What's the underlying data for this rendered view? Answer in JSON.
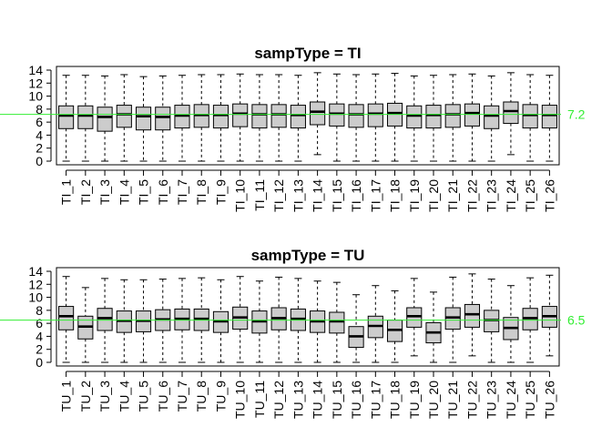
{
  "chart_data": [
    {
      "type": "boxplot",
      "title": "sampType = TI",
      "xlabel": "",
      "ylabel": "",
      "ylim": [
        0,
        14
      ],
      "yticks": [
        0,
        2,
        4,
        6,
        8,
        10,
        12,
        14
      ],
      "categories": [
        "TI_1",
        "TI_2",
        "TI_3",
        "TI_4",
        "TI_5",
        "TI_6",
        "TI_7",
        "TI_8",
        "TI_9",
        "TI_10",
        "TI_11",
        "TI_12",
        "TI_13",
        "TI_14",
        "TI_15",
        "TI_16",
        "TI_17",
        "TI_18",
        "TI_19",
        "TI_20",
        "TI_21",
        "TI_22",
        "TI_23",
        "TI_24",
        "TI_25",
        "TI_26"
      ],
      "boxes": [
        {
          "min": 0,
          "q1": 5.0,
          "median": 7.0,
          "q3": 8.5,
          "max": 13.2
        },
        {
          "min": 0,
          "q1": 5.0,
          "median": 7.0,
          "q3": 8.5,
          "max": 13.2
        },
        {
          "min": 0,
          "q1": 4.6,
          "median": 6.8,
          "q3": 8.3,
          "max": 13.1
        },
        {
          "min": 0,
          "q1": 5.2,
          "median": 7.2,
          "q3": 8.6,
          "max": 13.3
        },
        {
          "min": 0,
          "q1": 4.8,
          "median": 6.9,
          "q3": 8.3,
          "max": 13.0
        },
        {
          "min": 0,
          "q1": 4.8,
          "median": 6.8,
          "q3": 8.3,
          "max": 13.1
        },
        {
          "min": 0,
          "q1": 5.1,
          "median": 7.0,
          "q3": 8.6,
          "max": 13.2
        },
        {
          "min": 0,
          "q1": 5.2,
          "median": 7.1,
          "q3": 8.7,
          "max": 13.3
        },
        {
          "min": 0,
          "q1": 5.1,
          "median": 7.1,
          "q3": 8.6,
          "max": 13.3
        },
        {
          "min": 0,
          "q1": 5.3,
          "median": 7.3,
          "q3": 8.8,
          "max": 13.4
        },
        {
          "min": 0,
          "q1": 5.1,
          "median": 7.2,
          "q3": 8.7,
          "max": 13.3
        },
        {
          "min": 0,
          "q1": 5.2,
          "median": 7.2,
          "q3": 8.7,
          "max": 13.3
        },
        {
          "min": 0,
          "q1": 5.1,
          "median": 7.1,
          "q3": 8.6,
          "max": 13.2
        },
        {
          "min": 1.0,
          "q1": 5.6,
          "median": 7.6,
          "q3": 9.1,
          "max": 13.6
        },
        {
          "min": 0,
          "q1": 5.4,
          "median": 7.3,
          "q3": 8.8,
          "max": 13.4
        },
        {
          "min": 0,
          "q1": 5.2,
          "median": 7.2,
          "q3": 8.7,
          "max": 13.3
        },
        {
          "min": 0,
          "q1": 5.3,
          "median": 7.3,
          "q3": 8.8,
          "max": 13.4
        },
        {
          "min": 0,
          "q1": 5.4,
          "median": 7.4,
          "q3": 8.9,
          "max": 13.5
        },
        {
          "min": 0,
          "q1": 5.1,
          "median": 7.0,
          "q3": 8.5,
          "max": 13.1
        },
        {
          "min": 0,
          "q1": 5.1,
          "median": 7.1,
          "q3": 8.6,
          "max": 13.2
        },
        {
          "min": 0,
          "q1": 5.2,
          "median": 7.2,
          "q3": 8.7,
          "max": 13.3
        },
        {
          "min": 0,
          "q1": 5.4,
          "median": 7.4,
          "q3": 8.8,
          "max": 13.4
        },
        {
          "min": 0,
          "q1": 5.0,
          "median": 7.0,
          "q3": 8.5,
          "max": 13.1
        },
        {
          "min": 1.0,
          "q1": 5.8,
          "median": 7.7,
          "q3": 9.1,
          "max": 13.6
        },
        {
          "min": 0,
          "q1": 5.1,
          "median": 7.1,
          "q3": 8.7,
          "max": 13.3
        },
        {
          "min": 0,
          "q1": 5.1,
          "median": 7.1,
          "q3": 8.6,
          "max": 13.2
        }
      ],
      "reference_line": {
        "value": 7.2,
        "label": "7.2",
        "color": "#33ee33"
      },
      "box_fill": "#cccccc",
      "grid": false
    },
    {
      "type": "boxplot",
      "title": "sampType = TU",
      "xlabel": "",
      "ylabel": "",
      "ylim": [
        0,
        14
      ],
      "yticks": [
        0,
        2,
        4,
        6,
        8,
        10,
        12,
        14
      ],
      "categories": [
        "TU_1",
        "TU_2",
        "TU_3",
        "TU_4",
        "TU_5",
        "TU_6",
        "TU_7",
        "TU_8",
        "TU_9",
        "TU_10",
        "TU_11",
        "TU_12",
        "TU_13",
        "TU_14",
        "TU_15",
        "TU_16",
        "TU_17",
        "TU_18",
        "TU_19",
        "TU_20",
        "TU_21",
        "TU_22",
        "TU_23",
        "TU_24",
        "TU_25",
        "TU_26"
      ],
      "boxes": [
        {
          "min": 0,
          "q1": 5.0,
          "median": 7.1,
          "q3": 8.6,
          "max": 13.2
        },
        {
          "min": 0,
          "q1": 3.6,
          "median": 5.5,
          "q3": 7.1,
          "max": 11.5
        },
        {
          "min": 0,
          "q1": 4.9,
          "median": 6.8,
          "q3": 8.3,
          "max": 12.9
        },
        {
          "min": 0,
          "q1": 4.6,
          "median": 6.4,
          "q3": 7.9,
          "max": 12.7
        },
        {
          "min": 0,
          "q1": 4.7,
          "median": 6.4,
          "q3": 7.9,
          "max": 12.7
        },
        {
          "min": 0,
          "q1": 4.9,
          "median": 6.6,
          "q3": 8.1,
          "max": 12.8
        },
        {
          "min": 0,
          "q1": 5.0,
          "median": 6.7,
          "q3": 8.2,
          "max": 12.9
        },
        {
          "min": 0,
          "q1": 4.9,
          "median": 6.7,
          "q3": 8.2,
          "max": 13.0
        },
        {
          "min": 0,
          "q1": 4.6,
          "median": 6.3,
          "q3": 7.8,
          "max": 12.7
        },
        {
          "min": 0,
          "q1": 5.1,
          "median": 6.9,
          "q3": 8.5,
          "max": 13.2
        },
        {
          "min": 0,
          "q1": 4.5,
          "median": 6.3,
          "q3": 7.9,
          "max": 12.5
        },
        {
          "min": 0,
          "q1": 5.0,
          "median": 6.8,
          "q3": 8.4,
          "max": 13.1
        },
        {
          "min": 0,
          "q1": 4.9,
          "median": 6.7,
          "q3": 8.2,
          "max": 12.9
        },
        {
          "min": 0,
          "q1": 4.6,
          "median": 6.3,
          "q3": 7.9,
          "max": 12.5
        },
        {
          "min": 0,
          "q1": 4.5,
          "median": 6.3,
          "q3": 7.7,
          "max": 12.3
        },
        {
          "min": 0,
          "q1": 2.3,
          "median": 4.0,
          "q3": 5.5,
          "max": 10.4
        },
        {
          "min": 0,
          "q1": 3.8,
          "median": 5.6,
          "q3": 7.1,
          "max": 11.8
        },
        {
          "min": 0,
          "q1": 3.2,
          "median": 5.0,
          "q3": 6.5,
          "max": 11.0
        },
        {
          "min": 1.0,
          "q1": 5.4,
          "median": 7.1,
          "q3": 8.4,
          "max": 12.9
        },
        {
          "min": 0,
          "q1": 3.0,
          "median": 4.6,
          "q3": 6.1,
          "max": 10.8
        },
        {
          "min": 0,
          "q1": 5.1,
          "median": 6.9,
          "q3": 8.4,
          "max": 13.1
        },
        {
          "min": 1.0,
          "q1": 5.4,
          "median": 7.4,
          "q3": 8.9,
          "max": 13.6
        },
        {
          "min": 0,
          "q1": 4.7,
          "median": 6.5,
          "q3": 8.0,
          "max": 12.8
        },
        {
          "min": 0,
          "q1": 3.5,
          "median": 5.3,
          "q3": 6.9,
          "max": 11.8
        },
        {
          "min": 0,
          "q1": 5.0,
          "median": 6.8,
          "q3": 8.3,
          "max": 13.0
        },
        {
          "min": 1.0,
          "q1": 5.4,
          "median": 7.1,
          "q3": 8.6,
          "max": 13.4
        }
      ],
      "reference_line": {
        "value": 6.5,
        "label": "6.5",
        "color": "#33ee33"
      },
      "box_fill": "#cccccc",
      "grid": false
    }
  ]
}
